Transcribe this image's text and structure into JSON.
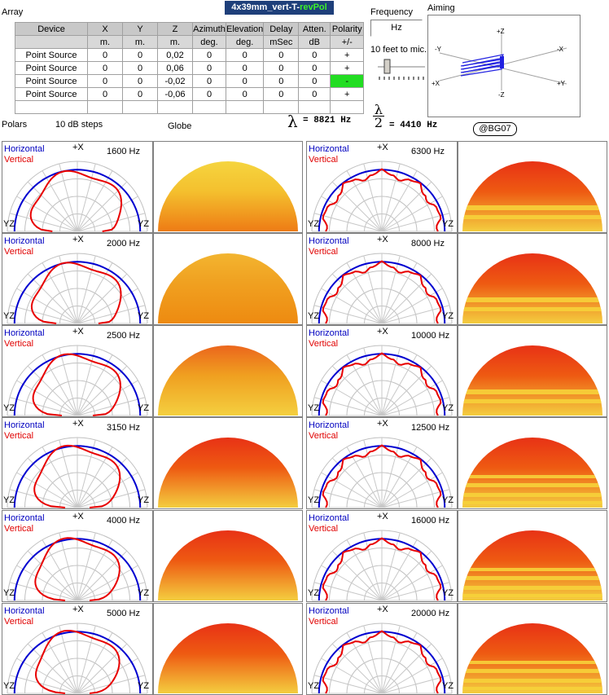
{
  "window": {
    "section_array": "Array",
    "title_prefix": "4x39mm_vert-T-",
    "title_highlight": "revPol",
    "section_frequency": "Frequency",
    "freq_unit": "Hz",
    "mic_distance": "10 feet to mic.",
    "section_aiming": "Aiming",
    "polars_label": "Polars",
    "db_steps": "10 dB steps",
    "globe_label": "Globe",
    "lambda_value": "= 8821 Hz",
    "half_lambda_value": "= 4410 Hz",
    "badge": "@BG07"
  },
  "array_table": {
    "headers": [
      "Device",
      "X",
      "Y",
      "Z",
      "Azimuth",
      "Elevation",
      "Delay",
      "Atten.",
      "Polarity"
    ],
    "units": [
      "",
      "m.",
      "m.",
      "m.",
      "deg.",
      "deg.",
      "mSec",
      "dB",
      "+/-"
    ],
    "rows": [
      [
        "Point Source",
        "0",
        "0",
        "0,02",
        "0",
        "0",
        "0",
        "0",
        "+"
      ],
      [
        "Point Source",
        "0",
        "0",
        "0,06",
        "0",
        "0",
        "0",
        "0",
        "+"
      ],
      [
        "Point Source",
        "0",
        "0",
        "-0,02",
        "0",
        "0",
        "0",
        "0",
        "-"
      ],
      [
        "Point Source",
        "0",
        "0",
        "-0,06",
        "0",
        "0",
        "0",
        "0",
        "+"
      ]
    ],
    "highlight_color": "#22dd22"
  },
  "aiming": {
    "axis_labels": [
      "+Z",
      "-Z",
      "-Y",
      "+Y",
      "+X",
      "-X",
      "+X",
      "+Y"
    ]
  },
  "polar_legend": {
    "horizontal": "Horizontal",
    "vertical": "Vertical",
    "top_axis": "+X",
    "left_axis": "YZ",
    "right_axis": "YZ",
    "horizontal_color": "#0000d0",
    "vertical_color": "#e80000"
  },
  "plots": [
    {
      "freq": "1600 Hz"
    },
    {
      "freq": "2000 Hz"
    },
    {
      "freq": "2500 Hz"
    },
    {
      "freq": "3150 Hz"
    },
    {
      "freq": "4000 Hz"
    },
    {
      "freq": "5000 Hz"
    },
    {
      "freq": "6300 Hz"
    },
    {
      "freq": "8000 Hz"
    },
    {
      "freq": "10000 Hz"
    },
    {
      "freq": "12500 Hz"
    },
    {
      "freq": "16000 Hz"
    },
    {
      "freq": "20000 Hz"
    }
  ]
}
